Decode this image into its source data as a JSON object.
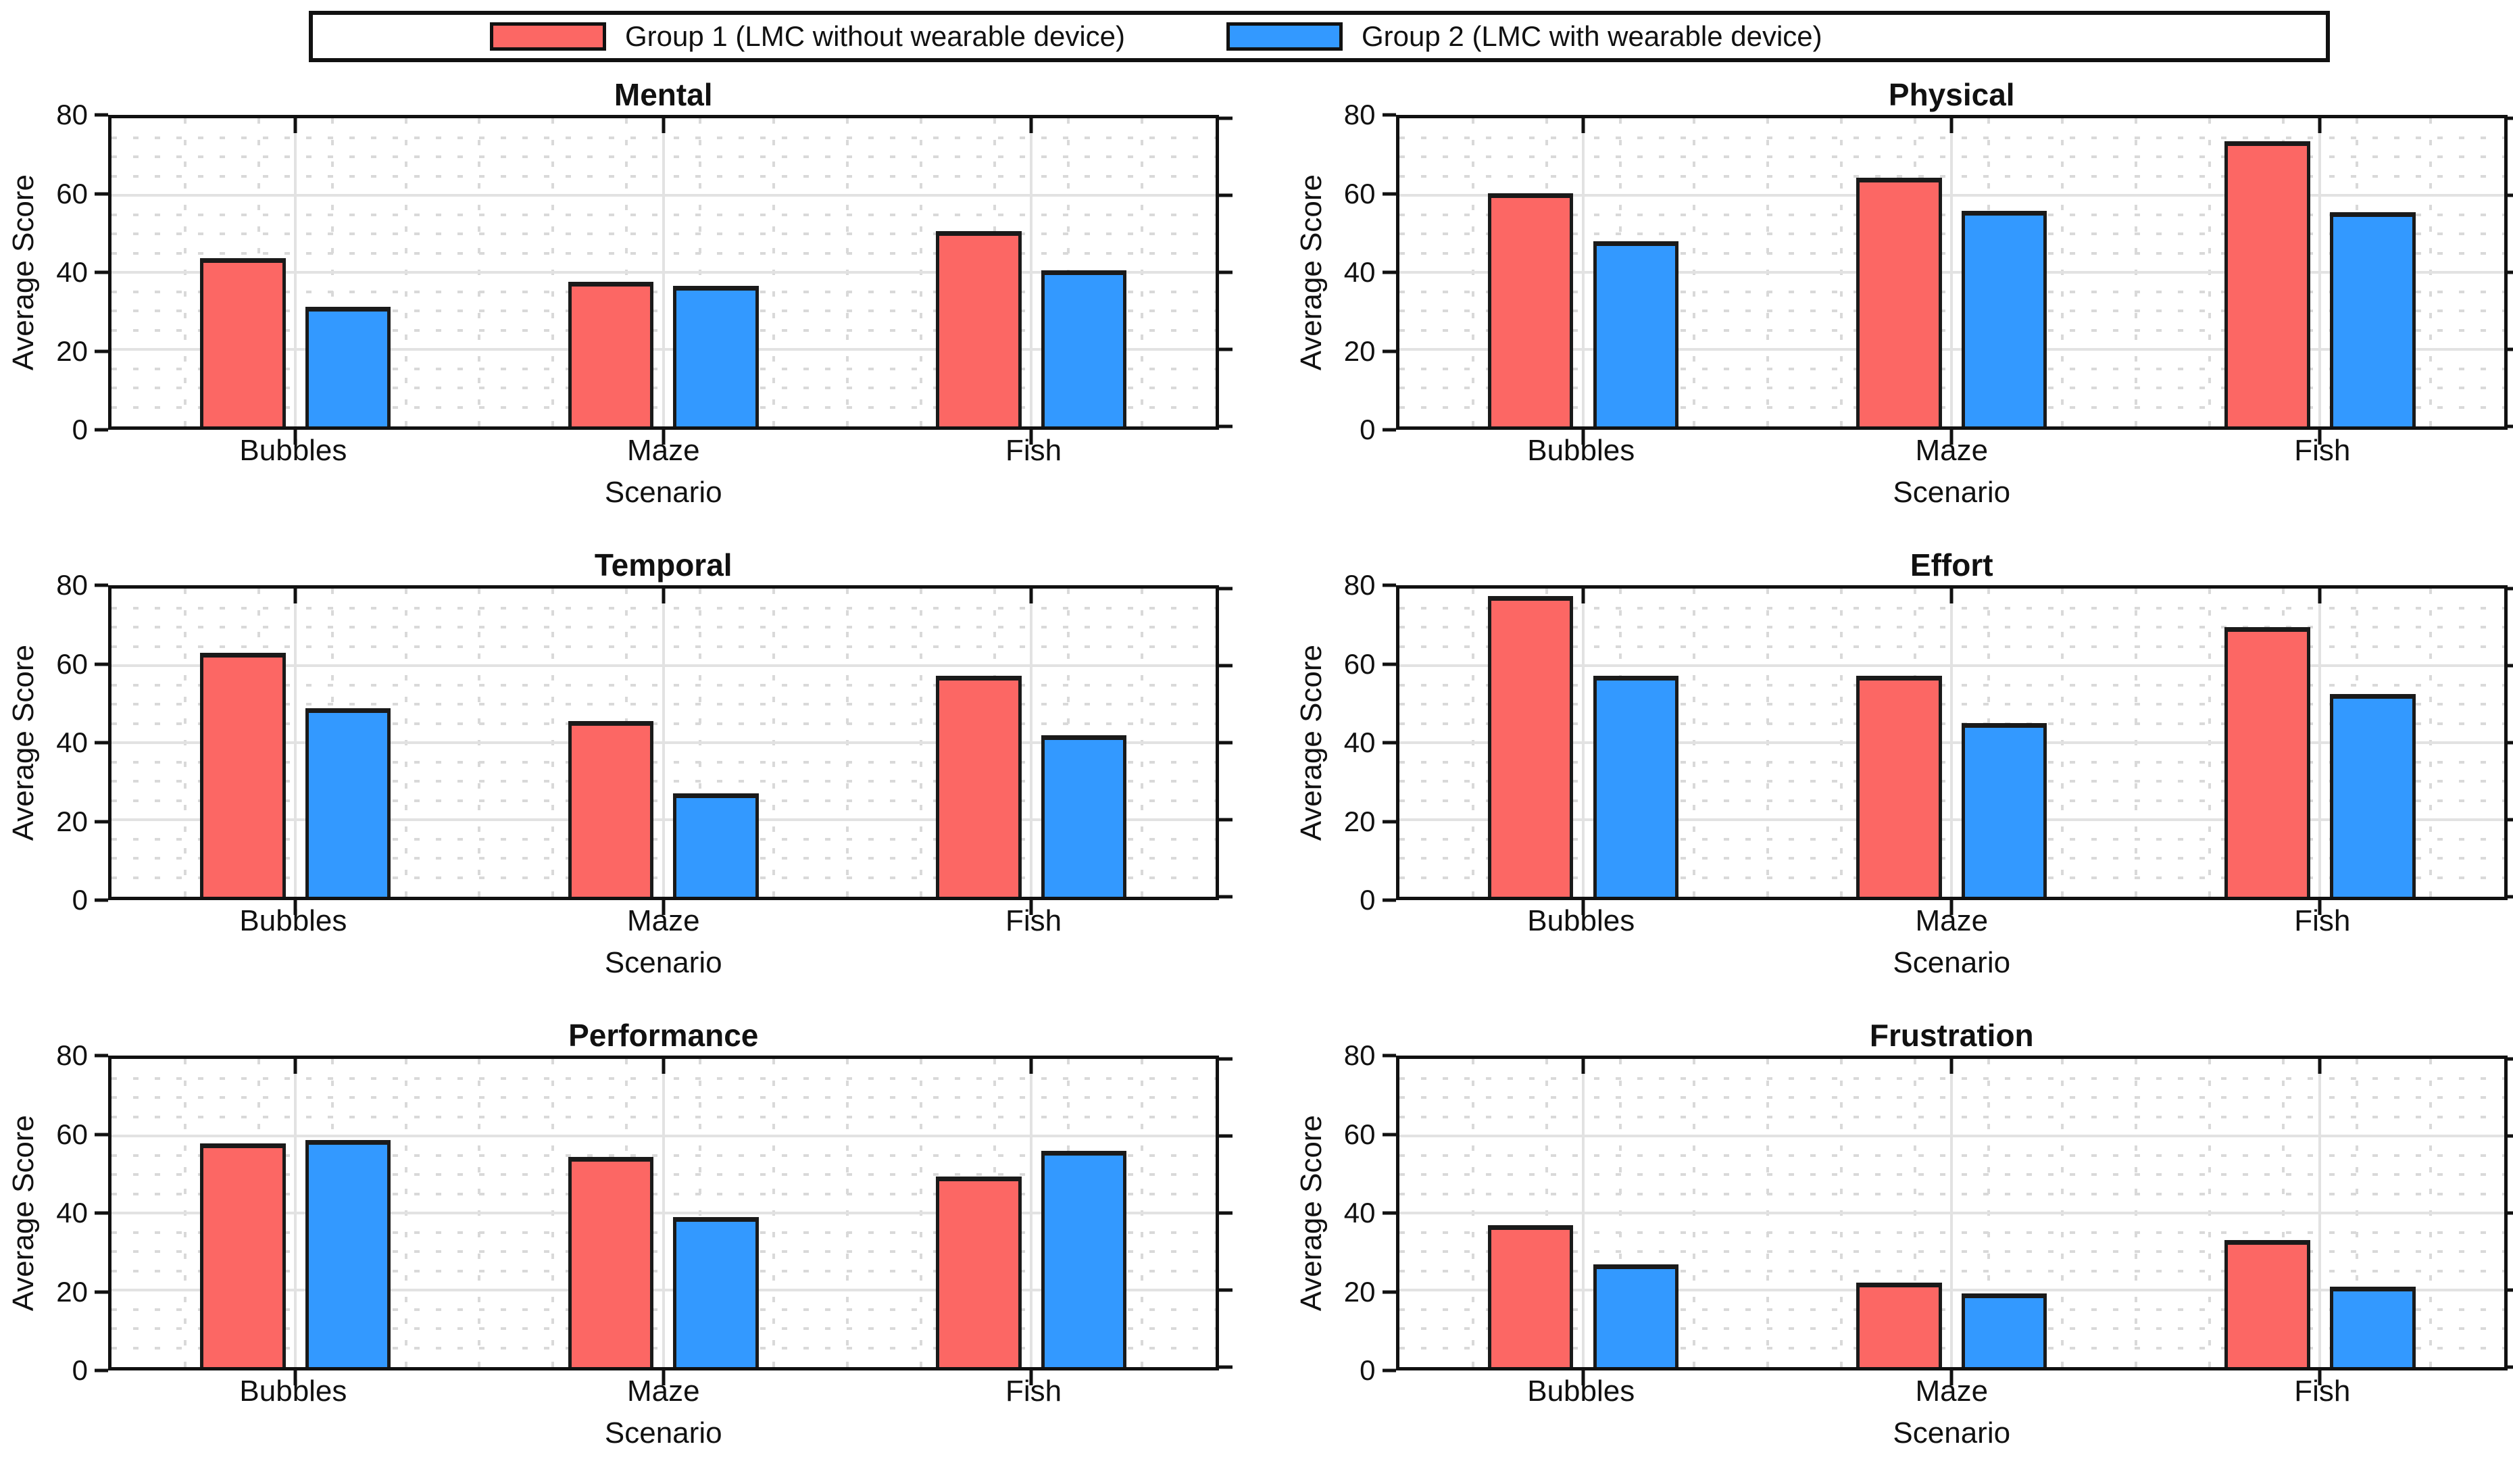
{
  "legend": {
    "entries": [
      {
        "label": "Group 1 (LMC without wearable device)",
        "color": "#FC6764"
      },
      {
        "label": "Group 2 (LMC with wearable device)",
        "color": "#3399FF"
      }
    ]
  },
  "style": {
    "bar_edge_color": "#1A1A1A",
    "axis_color": "#111111",
    "major_grid_color": "#E2E2E2",
    "minor_grid_color": "#D9D9D9",
    "background": "#FFFFFF"
  },
  "chart_data": [
    {
      "type": "bar",
      "title": "Mental",
      "categories": [
        "Bubbles",
        "Maze",
        "Fish"
      ],
      "series": [
        {
          "name": "Group 1 (LMC without wearable device)",
          "color": "#FC6764",
          "values": [
            43.7,
            37.5,
            50.7
          ]
        },
        {
          "name": "Group 2 (LMC with wearable device)",
          "color": "#3399FF",
          "values": [
            31.0,
            36.5,
            40.5
          ]
        }
      ],
      "xlabel": "Scenario",
      "ylabel": "Average Score",
      "ylim": [
        0,
        80
      ],
      "yticks": [
        0,
        20,
        40,
        60,
        80
      ],
      "grid": true,
      "legend_position": "top"
    },
    {
      "type": "bar",
      "title": "Physical",
      "categories": [
        "Bubbles",
        "Maze",
        "Fish"
      ],
      "series": [
        {
          "name": "Group 1 (LMC without wearable device)",
          "color": "#FC6764",
          "values": [
            60.5,
            64.5,
            74.0
          ]
        },
        {
          "name": "Group 2 (LMC with wearable device)",
          "color": "#3399FF",
          "values": [
            48.0,
            56.0,
            55.6
          ]
        }
      ],
      "xlabel": "Scenario",
      "ylabel": "Average Score",
      "ylim": [
        0,
        80
      ],
      "yticks": [
        0,
        20,
        40,
        60,
        80
      ],
      "grid": true,
      "legend_position": "top"
    },
    {
      "type": "bar",
      "title": "Temporal",
      "categories": [
        "Bubbles",
        "Maze",
        "Fish"
      ],
      "series": [
        {
          "name": "Group 1 (LMC without wearable device)",
          "color": "#FC6764",
          "values": [
            63.4,
            45.6,
            57.4
          ]
        },
        {
          "name": "Group 2 (LMC with wearable device)",
          "color": "#3399FF",
          "values": [
            49.0,
            26.9,
            41.9
          ]
        }
      ],
      "xlabel": "Scenario",
      "ylabel": "Average Score",
      "ylim": [
        0,
        80
      ],
      "yticks": [
        0,
        20,
        40,
        60,
        80
      ],
      "grid": true,
      "legend_position": "top"
    },
    {
      "type": "bar",
      "title": "Effort",
      "categories": [
        "Bubbles",
        "Maze",
        "Fish"
      ],
      "series": [
        {
          "name": "Group 1 (LMC without wearable device)",
          "color": "#FC6764",
          "values": [
            78.0,
            57.4,
            70.0
          ]
        },
        {
          "name": "Group 2 (LMC with wearable device)",
          "color": "#3399FF",
          "values": [
            57.4,
            45.1,
            52.6
          ]
        }
      ],
      "xlabel": "Scenario",
      "ylabel": "Average Score",
      "ylim": [
        0,
        80
      ],
      "yticks": [
        0,
        20,
        40,
        60,
        80
      ],
      "grid": true,
      "legend_position": "top"
    },
    {
      "type": "bar",
      "title": "Performance",
      "categories": [
        "Bubbles",
        "Maze",
        "Fish"
      ],
      "series": [
        {
          "name": "Group 1 (LMC without wearable device)",
          "color": "#FC6764",
          "values": [
            58.1,
            54.6,
            49.5
          ]
        },
        {
          "name": "Group 2 (LMC with wearable device)",
          "color": "#3399FF",
          "values": [
            58.9,
            39.0,
            56.1
          ]
        }
      ],
      "xlabel": "Scenario",
      "ylabel": "Average Score",
      "ylim": [
        0,
        80
      ],
      "yticks": [
        0,
        20,
        40,
        60,
        80
      ],
      "grid": true,
      "legend_position": "top"
    },
    {
      "type": "bar",
      "title": "Frustration",
      "categories": [
        "Bubbles",
        "Maze",
        "Fish"
      ],
      "series": [
        {
          "name": "Group 1 (LMC without wearable device)",
          "color": "#FC6764",
          "values": [
            36.8,
            22.0,
            32.9
          ]
        },
        {
          "name": "Group 2 (LMC with wearable device)",
          "color": "#3399FF",
          "values": [
            26.7,
            19.1,
            20.9
          ]
        }
      ],
      "xlabel": "Scenario",
      "ylabel": "Average Score",
      "ylim": [
        0,
        80
      ],
      "yticks": [
        0,
        20,
        40,
        60,
        80
      ],
      "grid": true,
      "legend_position": "top"
    }
  ]
}
